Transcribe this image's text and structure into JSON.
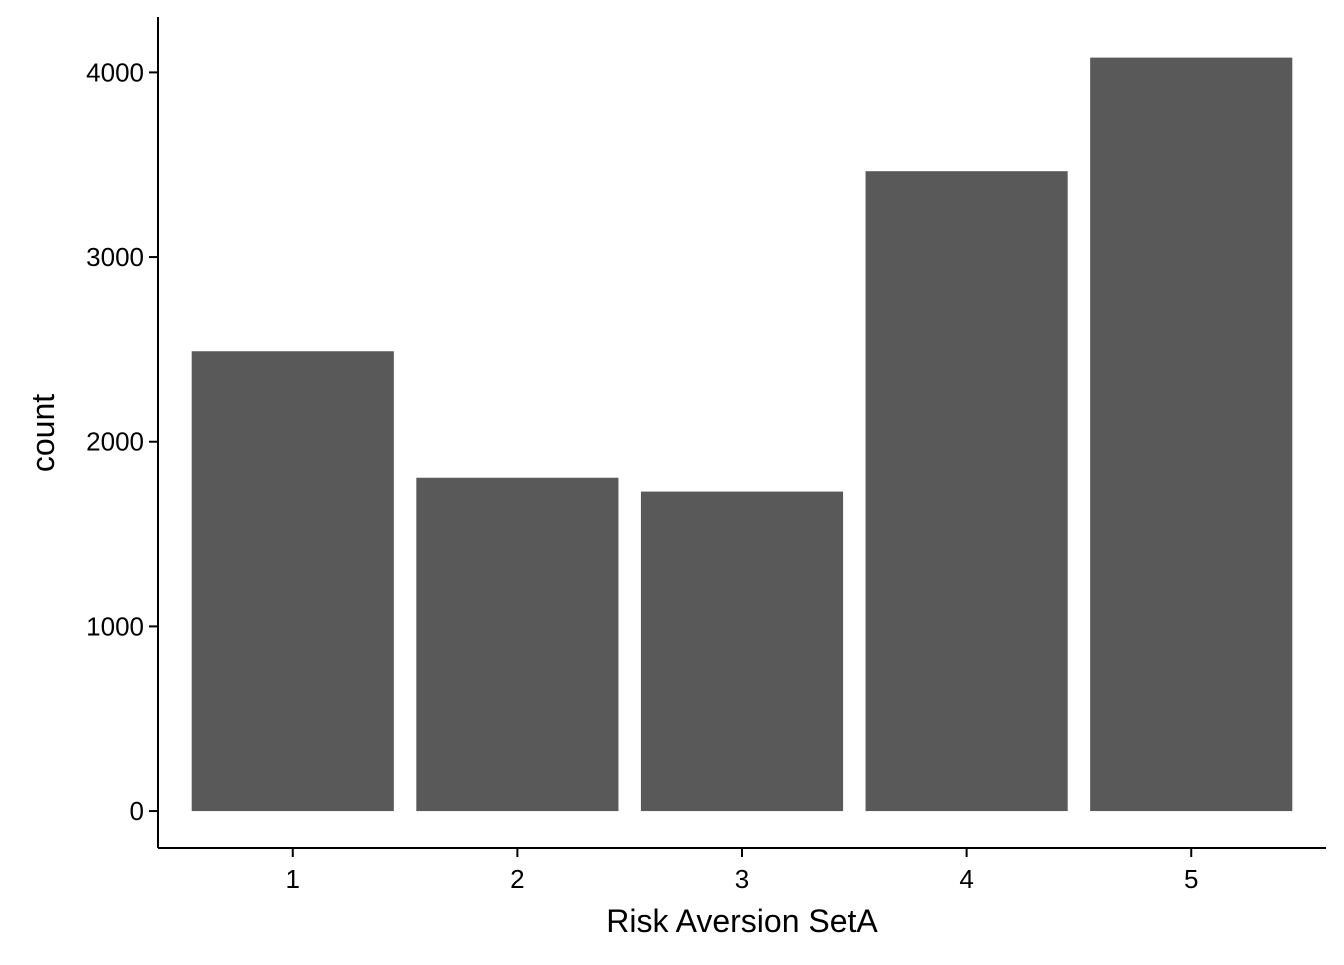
{
  "chart_data": {
    "type": "bar",
    "categories": [
      "1",
      "2",
      "3",
      "4",
      "5"
    ],
    "values": [
      2490,
      1805,
      1730,
      3465,
      4080
    ],
    "title": "",
    "xlabel": "Risk Aversion SetA",
    "ylabel": "count",
    "ylim": [
      -200,
      4300
    ],
    "yticks": [
      0,
      1000,
      2000,
      3000,
      4000
    ],
    "ytick_labels": [
      "0",
      "1000",
      "2000",
      "3000",
      "4000"
    ],
    "bar_color": "#595959",
    "axis_color": "#000000",
    "background": "#ffffff",
    "grid": false,
    "legend": "none"
  }
}
